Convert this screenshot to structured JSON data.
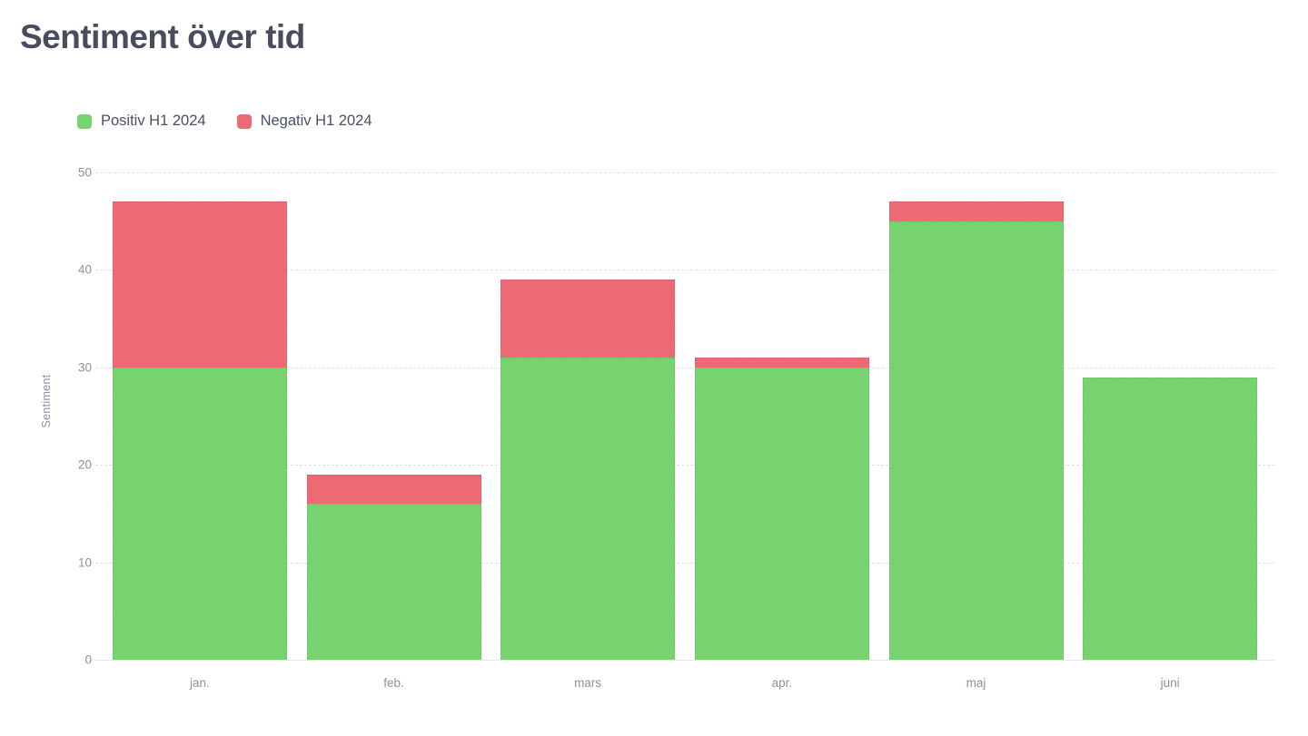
{
  "header": {
    "title": "Sentiment över tid"
  },
  "colors": {
    "positive": "#76d36f",
    "negative": "#ed6a75",
    "title_text": "#474c5e",
    "axis_text": "#8c91a2",
    "legend_text": "#4a4f63",
    "gridline": "#e0e2e8",
    "background": "#ffffff"
  },
  "chart_data": {
    "type": "bar",
    "stacked": true,
    "title": "Sentiment över tid",
    "categories": [
      "jan.",
      "feb.",
      "mars",
      "apr.",
      "maj",
      "juni"
    ],
    "series": [
      {
        "name": "Positiv H1 2024",
        "color": "#76d36f",
        "values": [
          30,
          16,
          31,
          30,
          45,
          29
        ]
      },
      {
        "name": "Negativ H1 2024",
        "color": "#ed6a75",
        "values": [
          17,
          3,
          8,
          1,
          2,
          0
        ]
      }
    ],
    "totals": [
      47,
      19,
      39,
      31,
      47,
      29
    ],
    "xlabel": "",
    "ylabel": "Sentiment",
    "ylim": [
      0,
      50
    ],
    "ytick_step": 10,
    "yticks": [
      0,
      10,
      20,
      30,
      40,
      50
    ],
    "grid": "horizontal-dashed",
    "legend_position": "top-left"
  }
}
